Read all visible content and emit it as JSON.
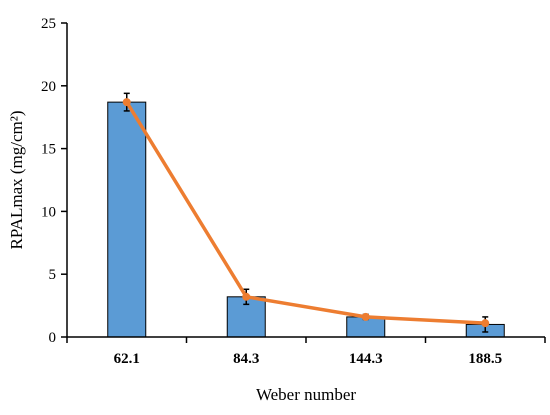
{
  "chart_data": {
    "type": "bar",
    "title": "",
    "xlabel": "Weber number",
    "ylabel": "RPALmax (mg/cm²)",
    "categories": [
      "62.1",
      "84.3",
      "144.3",
      "188.5"
    ],
    "ylim": [
      0,
      25
    ],
    "yticks": [
      "0",
      "5",
      "10",
      "15",
      "20",
      "25"
    ],
    "series": [
      {
        "kind": "bar",
        "values": [
          18.7,
          3.2,
          1.6,
          1.0
        ],
        "errors": [
          0.7,
          0.6,
          0.2,
          0.6
        ],
        "color": "#5b9bd5",
        "edge_color": "#000000"
      },
      {
        "kind": "line",
        "values": [
          18.7,
          3.2,
          1.6,
          1.1
        ],
        "color": "#ed7d31"
      }
    ],
    "grid": false,
    "legend": "none"
  }
}
